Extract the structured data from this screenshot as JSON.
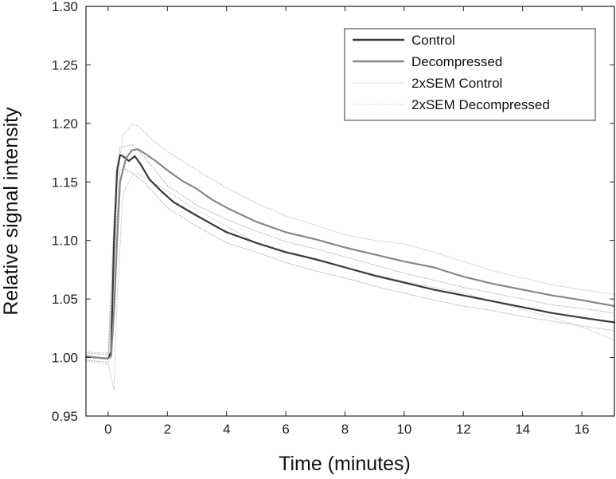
{
  "chart_data": {
    "type": "line",
    "title": "",
    "xlabel": "Time (minutes)",
    "ylabel": "Relative signal intensity",
    "xlim": [
      -0.75,
      17.1
    ],
    "ylim": [
      0.95,
      1.3
    ],
    "xticks": [
      0,
      2,
      4,
      6,
      8,
      10,
      12,
      14,
      16
    ],
    "xtick_labels": [
      "0",
      "2",
      "4",
      "6",
      "8",
      "10",
      "12",
      "14",
      "16"
    ],
    "yticks": [
      0.95,
      1.0,
      1.05,
      1.1,
      1.15,
      1.2,
      1.25,
      1.3
    ],
    "ytick_labels": [
      "0.95",
      "1.00",
      "1.05",
      "1.10",
      "1.15",
      "1.20",
      "1.25",
      "1.30"
    ],
    "grid": false,
    "legend_position": "top-right",
    "series": [
      {
        "name": "Control",
        "color": "#3a3a3a",
        "style": "solid",
        "x": [
          -0.75,
          -0.4,
          0.0,
          0.1,
          0.2,
          0.3,
          0.4,
          0.5,
          0.7,
          0.9,
          1.1,
          1.4,
          1.8,
          2.2,
          2.8,
          3.5,
          4.0,
          5.0,
          6.0,
          7.0,
          8.0,
          9.0,
          10.0,
          11.0,
          12.0,
          13.0,
          14.0,
          15.0,
          16.0,
          17.1
        ],
        "y": [
          1.001,
          1.0,
          0.999,
          1.005,
          1.1,
          1.16,
          1.173,
          1.172,
          1.168,
          1.172,
          1.165,
          1.152,
          1.142,
          1.133,
          1.124,
          1.114,
          1.107,
          1.098,
          1.09,
          1.084,
          1.077,
          1.07,
          1.064,
          1.058,
          1.053,
          1.048,
          1.043,
          1.038,
          1.034,
          1.03
        ]
      },
      {
        "name": "Decompressed",
        "color": "#888888",
        "style": "solid",
        "x": [
          -0.75,
          -0.4,
          0.0,
          0.1,
          0.2,
          0.3,
          0.4,
          0.6,
          0.8,
          1.0,
          1.2,
          1.6,
          2.0,
          2.5,
          3.0,
          3.5,
          4.0,
          5.0,
          6.0,
          7.0,
          8.0,
          9.0,
          10.0,
          11.0,
          12.0,
          13.0,
          14.0,
          15.0,
          16.0,
          17.1
        ],
        "y": [
          1.001,
          1.0,
          0.999,
          1.001,
          1.04,
          1.1,
          1.15,
          1.17,
          1.177,
          1.178,
          1.175,
          1.168,
          1.16,
          1.151,
          1.144,
          1.135,
          1.128,
          1.116,
          1.107,
          1.101,
          1.094,
          1.088,
          1.082,
          1.077,
          1.069,
          1.063,
          1.058,
          1.053,
          1.049,
          1.044
        ]
      },
      {
        "name": "2xSEM Control",
        "color": "#b5b5b5",
        "style": "dotted",
        "x": [
          -0.75,
          -0.4,
          0.0,
          0.2,
          0.4,
          0.5,
          0.8,
          1.2,
          2.0,
          3.0,
          4.0,
          5.0,
          6.0,
          7.0,
          8.0,
          9.0,
          10.0,
          11.0,
          12.0,
          13.0,
          14.0,
          15.0,
          16.0,
          17.1
        ],
        "y": [
          1.004,
          1.003,
          1.003,
          1.12,
          1.18,
          1.18,
          1.182,
          1.172,
          1.147,
          1.13,
          1.118,
          1.108,
          1.099,
          1.093,
          1.086,
          1.079,
          1.072,
          1.066,
          1.06,
          1.055,
          1.05,
          1.045,
          1.042,
          1.038
        ],
        "y_lower": [
          0.998,
          0.997,
          0.996,
          1.08,
          1.16,
          1.162,
          1.158,
          1.15,
          1.128,
          1.112,
          1.098,
          1.09,
          1.081,
          1.074,
          1.068,
          1.061,
          1.055,
          1.049,
          1.044,
          1.04,
          1.035,
          1.031,
          1.027,
          1.023
        ]
      },
      {
        "name": "2xSEM Decompressed",
        "color": "#c8c8c8",
        "style": "dotted",
        "x": [
          -0.75,
          -0.4,
          0.0,
          0.2,
          0.3,
          0.5,
          0.8,
          1.0,
          1.5,
          2.0,
          3.0,
          4.0,
          5.0,
          6.0,
          7.0,
          8.0,
          9.0,
          10.0,
          11.0,
          12.0,
          13.0,
          14.0,
          15.0,
          16.0,
          17.1
        ],
        "y": [
          1.005,
          1.004,
          1.004,
          1.07,
          1.15,
          1.19,
          1.199,
          1.198,
          1.186,
          1.176,
          1.16,
          1.145,
          1.132,
          1.121,
          1.113,
          1.105,
          1.1,
          1.097,
          1.09,
          1.082,
          1.074,
          1.068,
          1.062,
          1.058,
          1.054
        ],
        "y_lower": [
          0.997,
          0.996,
          0.994,
          0.972,
          1.05,
          1.14,
          1.155,
          1.157,
          1.15,
          1.142,
          1.126,
          1.112,
          1.098,
          1.09,
          1.083,
          1.077,
          1.071,
          1.065,
          1.06,
          1.055,
          1.048,
          1.041,
          1.034,
          1.026,
          1.015
        ]
      }
    ]
  }
}
